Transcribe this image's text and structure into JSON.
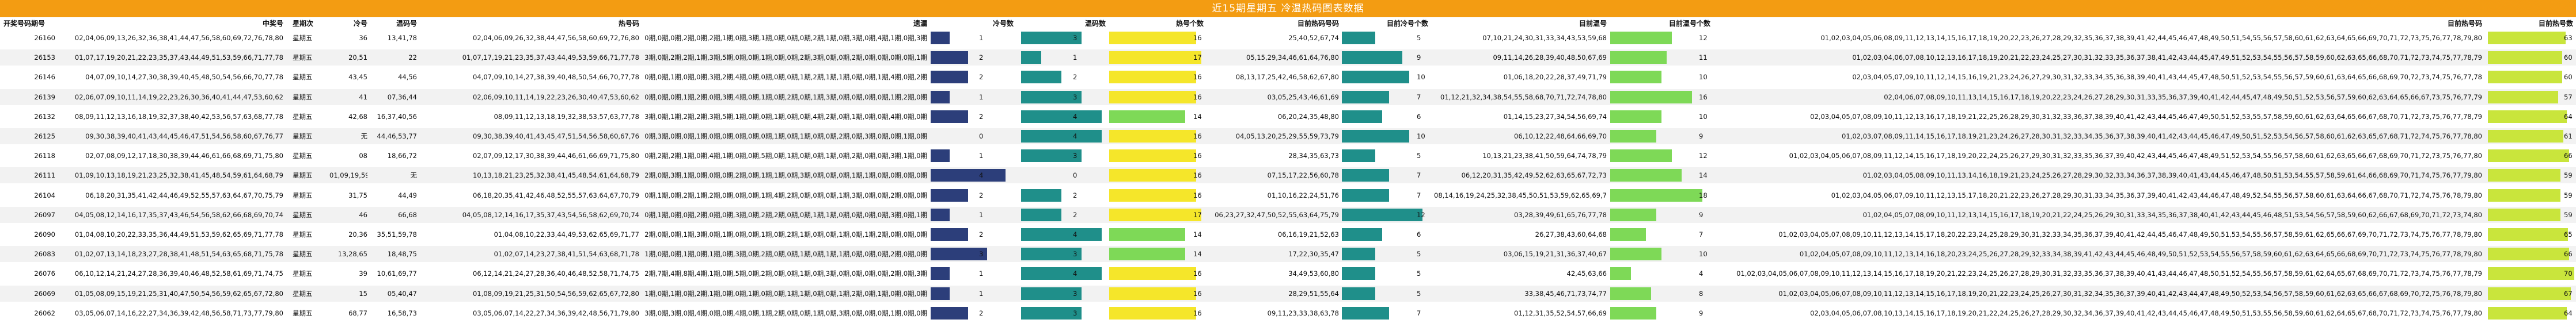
{
  "title": "近15期星期五 冷温热码图表数据",
  "headers": {
    "period": "开奖号码期号",
    "prize": "中奖号",
    "weekday": "星期次",
    "cold": "冷号",
    "warm": "温码号",
    "hot": "热号码",
    "traversal": "遗漏",
    "cold_count": "冷号数",
    "warm_count": "温码数",
    "hot_count": "热号个数",
    "prev_hot": "目前热码号码",
    "prev_cold_count": "目前冷号个数",
    "cur_warm": "目前温号",
    "cur_warm_count": "目前温号个数",
    "cur_hot": "目前热号码",
    "cur_hot_count": "目前热号数"
  },
  "colors": {
    "title_bg": "#f39c12",
    "cold_bar": "#2c3e7a",
    "warm_bar": "#1f8f8a",
    "hot_bar_low": "#7ed957",
    "hot_bar_high": "#f5e62a",
    "row_alt": "#f2f2f2"
  },
  "rows": [
    {
      "period": "26160",
      "prize": "02,04,06,09,13,26,32,36,38,41,44,47,56,58,60,69,72,76,78,80",
      "weekday": "星期五",
      "cold": "36",
      "warm": "13,41,78",
      "hot": "02,04,06,09,26,32,38,44,47,56,58,60,69,72,76,80",
      "traversal": "0期,0期,0期,2期,0期,2期,1期,0期,3期,1期,0期,0期,0期,2期,1期,0期,3期,0期,4期,1期,0期,3期",
      "cold_count": 1,
      "warm_count": 3,
      "hot_count": 16,
      "prev_hot": "25,40,52,67,74",
      "prev_cold_count": 5,
      "cur_warm": "07,10,21,24,30,31,33,34,43,53,59,68",
      "cur_warm_count": 12,
      "cur_hot": "01,02,03,04,05,06,08,09,11,12,13,14,15,16,17,18,19,20,22,23,26,27,28,29,32,35,36,37,38,39,41,42,44,45,46,47,48,49,50,51,54,55,56,57,58,60,61,62,63,64,65,66,69,70,71,72,73,75,76,77,78,79,80",
      "cur_hot_count": 63
    },
    {
      "period": "26153",
      "prize": "01,07,17,19,20,21,22,23,35,37,43,44,49,51,53,59,66,71,77,78",
      "weekday": "星期五",
      "cold": "20,51",
      "warm": "22",
      "hot": "01,07,17,19,21,23,35,37,43,44,49,53,59,66,71,77,78",
      "traversal": "3期,0期,2期,2期,1期,3期,5期,0期,0期,1期,0期,0期,2期,3期,0期,0期,2期,0期,0期,0期,0期,1期",
      "cold_count": 2,
      "warm_count": 1,
      "hot_count": 17,
      "prev_hot": "05,15,29,34,46,61,64,76,80",
      "prev_cold_count": 9,
      "cur_warm": "09,11,14,26,28,39,40,48,50,67,69",
      "cur_warm_count": 11,
      "cur_hot": "01,02,03,04,06,07,08,10,12,13,16,17,18,19,20,21,22,23,24,25,27,30,31,32,33,35,36,37,38,41,42,43,44,45,47,49,51,52,53,54,55,56,57,58,59,60,62,63,65,66,68,70,71,72,73,74,75,77,78,79",
      "cur_hot_count": 60
    },
    {
      "period": "26146",
      "prize": "04,07,09,10,14,27,30,38,39,40,45,48,50,54,56,66,70,77,78",
      "weekday": "星期五",
      "cold": "43,45",
      "warm": "44,56",
      "hot": "04,07,09,10,14,27,38,39,40,48,50,54,66,70,77,78",
      "traversal": "0期,0期,1期,0期,0期,3期,2期,4期,0期,0期,0期,0期,1期,2期,1期,1期,0期,0期,1期,4期,0期,2期",
      "cold_count": 2,
      "warm_count": 2,
      "hot_count": 16,
      "prev_hot": "08,13,17,25,42,46,58,62,67,80",
      "prev_cold_count": 10,
      "cur_warm": "01,06,18,20,22,28,37,49,71,79",
      "cur_warm_count": 10,
      "cur_hot": "02,03,04,05,07,09,10,11,12,14,15,16,19,21,23,24,26,27,29,30,31,32,33,34,35,36,38,39,40,41,43,44,45,47,48,50,51,52,53,54,55,56,57,59,60,61,63,64,65,66,68,69,70,72,73,74,75,76,77,78",
      "cur_hot_count": 60
    },
    {
      "period": "26139",
      "prize": "02,06,07,09,10,11,14,19,22,23,26,30,36,40,41,44,47,53,60,62",
      "weekday": "星期五",
      "cold": "41",
      "warm": "07,36,44",
      "hot": "02,06,09,10,11,14,19,22,23,26,30,40,47,53,60,62",
      "traversal": "0期,0期,0期,1期,2期,0期,3期,4期,0期,1期,0期,2期,0期,1期,3期,0期,0期,0期,0期,1期,2期,0期",
      "cold_count": 1,
      "warm_count": 3,
      "hot_count": 16,
      "prev_hot": "03,05,25,43,46,61,69",
      "prev_cold_count": 7,
      "cur_warm": "01,12,21,32,34,38,54,55,58,68,70,71,72,74,78,80",
      "cur_warm_count": 16,
      "cur_hot": "02,04,06,07,08,09,10,11,13,14,15,16,17,18,19,20,22,23,24,26,27,28,29,30,31,33,35,36,37,39,40,41,42,44,45,47,48,49,50,51,52,53,56,57,59,60,62,63,64,65,66,67,73,75,76,77,79",
      "cur_hot_count": 57
    },
    {
      "period": "26132",
      "prize": "08,09,11,12,13,16,18,19,32,37,38,40,42,53,56,57,63,68,77,78",
      "weekday": "星期五",
      "cold": "42,68",
      "warm": "16,37,40,56",
      "hot": "08,09,11,12,13,18,19,32,38,53,57,63,77,78",
      "traversal": "3期,0期,1期,2期,2期,3期,5期,1期,0期,0期,1期,0期,0期,4期,2期,0期,1期,0期,0期,4期,0期,0期",
      "cold_count": 2,
      "warm_count": 4,
      "hot_count": 14,
      "prev_hot": "06,20,24,35,48,80",
      "prev_cold_count": 6,
      "cur_warm": "01,14,15,23,27,34,54,56,69,74",
      "cur_warm_count": 10,
      "cur_hot": "02,03,04,05,07,08,09,10,11,12,13,16,17,18,19,21,22,25,26,28,29,30,31,32,33,36,37,38,39,40,41,42,43,44,45,46,47,49,50,51,52,53,55,57,58,59,60,61,62,63,64,65,66,67,68,70,71,72,73,75,76,77,78,79",
      "cur_hot_count": 64
    },
    {
      "period": "26125",
      "prize": "09,30,38,39,40,41,43,44,45,46,47,51,54,56,58,60,67,76,77",
      "weekday": "星期五",
      "cold": "无",
      "warm": "44,46,53,77",
      "hot": "09,30,38,39,40,41,43,45,47,51,54,56,58,60,67,76",
      "traversal": "0期,3期,0期,0期,1期,0期,0期,0期,0期,0期,1期,0期,1期,0期,0期,2期,0期,3期,0期,0期,1期,0期",
      "cold_count": 0,
      "warm_count": 4,
      "hot_count": 16,
      "prev_hot": "04,05,13,20,25,29,55,59,73,79",
      "prev_cold_count": 10,
      "cur_warm": "06,10,12,22,48,64,66,69,70",
      "cur_warm_count": 9,
      "cur_hot": "01,02,03,07,08,09,11,14,15,16,17,18,19,21,23,24,26,27,28,30,31,32,33,34,35,36,37,38,39,40,41,42,43,44,45,46,47,49,50,51,52,53,54,56,57,58,60,61,62,63,65,67,68,71,72,74,75,76,77,78,80",
      "cur_hot_count": 61
    },
    {
      "period": "26118",
      "prize": "02,07,08,09,12,17,18,30,38,39,44,46,61,66,68,69,71,75,80",
      "weekday": "星期五",
      "cold": "08",
      "warm": "18,66,72",
      "hot": "02,07,09,12,17,30,38,39,44,46,61,66,69,71,75,80",
      "traversal": "0期,2期,2期,1期,0期,4期,1期,0期,0期,5期,0期,1期,0期,0期,1期,0期,2期,0期,0期,3期,1期,0期",
      "cold_count": 1,
      "warm_count": 3,
      "hot_count": 16,
      "prev_hot": "28,34,35,63,73",
      "prev_cold_count": 5,
      "cur_warm": "10,13,21,23,38,41,50,59,64,74,78,79",
      "cur_warm_count": 12,
      "cur_hot": "01,02,03,04,05,06,07,08,09,11,12,14,15,16,17,18,19,20,22,24,25,26,27,29,30,31,32,33,35,36,37,39,40,42,43,44,45,46,47,48,49,51,52,53,54,55,56,57,58,60,61,62,63,65,66,67,68,69,70,71,72,73,75,76,77,80",
      "cur_hot_count": 66
    },
    {
      "period": "26111",
      "prize": "01,09,10,13,18,19,21,23,25,32,38,41,45,48,54,59,61,64,68,79",
      "weekday": "星期五",
      "cold": "01,09,19,59",
      "warm": "无",
      "hot": "10,13,18,21,23,25,32,38,41,45,48,54,61,64,68,79",
      "traversal": "2期,0期,3期,1期,0期,0期,0期,2期,0期,1期,1期,0期,3期,0期,0期,0期,1期,1期,0期,0期,0期,0期",
      "cold_count": 4,
      "warm_count": 0,
      "hot_count": 16,
      "prev_hot": "07,15,17,22,56,60,78",
      "prev_cold_count": 7,
      "cur_warm": "06,12,20,31,35,42,49,52,62,63,65,67,72,73",
      "cur_warm_count": 14,
      "cur_hot": "01,02,03,04,05,08,09,10,11,13,14,16,18,19,21,23,24,25,26,27,28,29,30,32,33,34,36,37,38,39,40,41,43,44,45,46,47,48,50,51,53,54,55,57,58,59,61,64,66,68,69,70,71,74,75,76,77,79,80",
      "cur_hot_count": 59
    },
    {
      "period": "26104",
      "prize": "06,18,20,31,35,41,42,44,46,49,52,55,57,63,64,67,70,75,79",
      "weekday": "星期五",
      "cold": "31,75",
      "warm": "44,49",
      "hot": "06,18,20,35,41,42,46,48,52,55,57,63,64,67,70,79",
      "traversal": "0期,1期,0期,2期,1期,2期,0期,0期,0期,1期,4期,2期,0期,0期,0期,1期,3期,0期,0期,2期,0期,0期",
      "cold_count": 2,
      "warm_count": 2,
      "hot_count": 16,
      "prev_hot": "01,10,16,22,24,51,76",
      "prev_cold_count": 7,
      "cur_warm": "08,14,16,19,24,25,32,38,45,50,51,53,59,62,65,69,73,77",
      "cur_warm_count": 18,
      "cur_hot": "01,02,03,04,05,06,07,09,10,11,12,13,15,17,18,20,21,22,23,26,27,28,29,30,31,33,34,35,36,37,39,40,41,42,43,44,46,47,48,49,52,54,55,56,57,58,60,61,63,64,66,67,68,70,71,72,74,75,76,78,79,80",
      "cur_hot_count": 59
    },
    {
      "period": "26097",
      "prize": "04,05,08,12,14,16,17,35,37,43,46,54,56,58,62,66,68,69,70,74",
      "weekday": "星期五",
      "cold": "46",
      "warm": "66,68",
      "hot": "04,05,08,12,14,16,17,35,37,43,54,56,58,62,69,70,74",
      "traversal": "0期,1期,0期,0期,2期,0期,0期,3期,0期,2期,2期,0期,0期,1期,1期,0期,0期,0期,0期,3期,0期,1期",
      "cold_count": 1,
      "warm_count": 2,
      "hot_count": 17,
      "prev_hot": "06,23,27,32,47,50,52,55,63,64,75,79",
      "prev_cold_count": 12,
      "cur_warm": "03,28,39,49,61,65,76,77,78",
      "cur_warm_count": 9,
      "cur_hot": "01,02,04,05,07,08,09,10,11,12,13,14,15,16,17,18,19,20,21,22,24,25,26,29,30,31,33,34,35,36,37,38,40,41,42,43,44,45,46,48,51,53,54,56,57,58,59,60,62,66,67,68,69,70,71,72,73,74,80",
      "cur_hot_count": 59
    },
    {
      "period": "26090",
      "prize": "01,04,08,10,20,22,33,35,36,44,49,51,53,59,62,65,69,71,77,78",
      "weekday": "星期五",
      "cold": "20,36",
      "warm": "35,51,59,78",
      "hot": "01,04,08,10,22,33,44,49,53,62,65,69,71,77",
      "traversal": "2期,0期,0期,1期,3期,0期,1期,0期,0期,1期,0期,2期,1期,0期,0期,1期,0期,1期,2期,0期,0期,0期",
      "cold_count": 2,
      "warm_count": 4,
      "hot_count": 14,
      "prev_hot": "06,16,19,21,52,63",
      "prev_cold_count": 6,
      "cur_warm": "26,27,38,43,60,64,68",
      "cur_warm_count": 7,
      "cur_hot": "01,02,03,04,05,07,08,09,10,11,12,13,14,15,17,18,20,22,23,24,25,28,29,30,31,32,33,34,35,36,37,39,40,41,42,44,45,46,47,48,49,50,51,53,54,55,56,57,58,59,61,62,65,66,67,69,70,71,72,73,74,75,76,77,78,79,80",
      "cur_hot_count": 65
    },
    {
      "period": "26083",
      "prize": "01,02,07,13,14,18,23,27,28,38,41,48,51,54,63,65,68,71,75,78",
      "weekday": "星期五",
      "cold": "13,28,65",
      "warm": "18,48,75",
      "hot": "01,02,07,14,23,27,38,41,51,54,63,68,71,78",
      "traversal": "1期,0期,0期,1期,0期,1期,0期,3期,0期,2期,0期,0期,1期,0期,1期,1期,0期,0期,0期,2期,0期,0期",
      "cold_count": 3,
      "warm_count": 3,
      "hot_count": 14,
      "prev_hot": "17,22,30,35,47",
      "prev_cold_count": 5,
      "cur_warm": "03,06,15,19,21,31,36,37,40,67",
      "cur_warm_count": 10,
      "cur_hot": "01,02,04,05,07,08,09,10,11,12,13,14,16,18,20,23,24,25,26,27,28,29,32,33,34,38,39,41,42,43,44,45,46,48,49,50,51,52,53,54,55,56,57,58,59,60,61,62,63,64,65,66,68,69,70,71,72,73,74,75,76,77,78,79,80",
      "cur_hot_count": 66
    },
    {
      "period": "26076",
      "prize": "06,10,12,14,21,24,27,28,36,39,40,46,48,52,58,61,69,71,74,75",
      "weekday": "星期五",
      "cold": "39",
      "warm": "10,61,69,77",
      "hot": "06,12,14,21,24,27,28,36,40,46,48,52,58,71,74,75",
      "traversal": "2期,7期,4期,8期,4期,1期,0期,5期,0期,2期,0期,0期,1期,0期,3期,0期,0期,0期,0期,2期,0期,3期",
      "cold_count": 1,
      "warm_count": 4,
      "hot_count": 16,
      "prev_hot": "34,49,53,60,80",
      "prev_cold_count": 5,
      "cur_warm": "42,45,63,66",
      "cur_warm_count": 4,
      "cur_hot": "01,02,03,04,05,06,07,08,09,10,11,12,13,14,15,16,17,18,19,20,21,22,23,24,25,26,27,28,29,30,31,32,33,35,36,37,38,39,40,41,43,44,46,47,48,50,51,52,54,55,56,57,58,59,61,62,64,65,67,68,69,70,71,72,73,74,75,76,77,78,79",
      "cur_hot_count": 70
    },
    {
      "period": "26069",
      "prize": "01,05,08,09,15,19,21,25,31,40,47,50,54,56,59,62,65,67,72,80",
      "weekday": "星期五",
      "cold": "15",
      "warm": "05,40,47",
      "hot": "01,08,09,19,21,25,31,50,54,56,59,62,65,67,72,80",
      "traversal": "1期,0期,1期,0期,2期,1期,0期,0期,1期,0期,0期,1期,1期,0期,0期,1期,2期,0期,1期,0期,0期,0期",
      "cold_count": 1,
      "warm_count": 3,
      "hot_count": 16,
      "prev_hot": "28,29,51,55,64",
      "prev_cold_count": 5,
      "cur_warm": "33,38,45,46,71,73,74,77",
      "cur_warm_count": 8,
      "cur_hot": "01,02,03,04,05,06,07,08,09,10,11,12,13,14,15,16,17,18,19,20,21,22,23,24,25,26,27,30,31,32,34,35,36,37,39,40,41,42,43,44,47,48,49,50,52,53,54,56,57,58,59,60,61,62,63,65,66,67,68,69,70,72,75,76,78,79,80",
      "cur_hot_count": 67
    },
    {
      "period": "26062",
      "prize": "03,05,06,07,14,16,22,27,34,36,39,42,48,56,58,71,73,77,79,80",
      "weekday": "星期五",
      "cold": "68,77",
      "warm": "16,58,73",
      "hot": "03,05,06,07,14,22,27,34,36,39,42,48,56,71,79,80",
      "traversal": "3期,0期,3期,0期,4期,0期,0期,4期,0期,1期,2期,0期,0期,1期,0期,3期,0期,0期,0期,1期,0期,0期",
      "cold_count": 2,
      "warm_count": 3,
      "hot_count": 16,
      "prev_hot": "09,11,23,33,38,63,78",
      "prev_cold_count": 7,
      "cur_warm": "01,12,31,35,52,54,57,66,69",
      "cur_warm_count": 9,
      "cur_hot": "02,03,04,05,06,07,08,10,13,14,15,16,17,18,19,20,21,22,24,25,26,27,28,29,30,32,34,36,37,39,40,41,42,43,44,45,46,47,48,49,50,51,53,55,56,58,59,60,61,62,64,65,67,68,70,71,72,73,74,75,76,77,79,80",
      "cur_hot_count": 64
    }
  ]
}
